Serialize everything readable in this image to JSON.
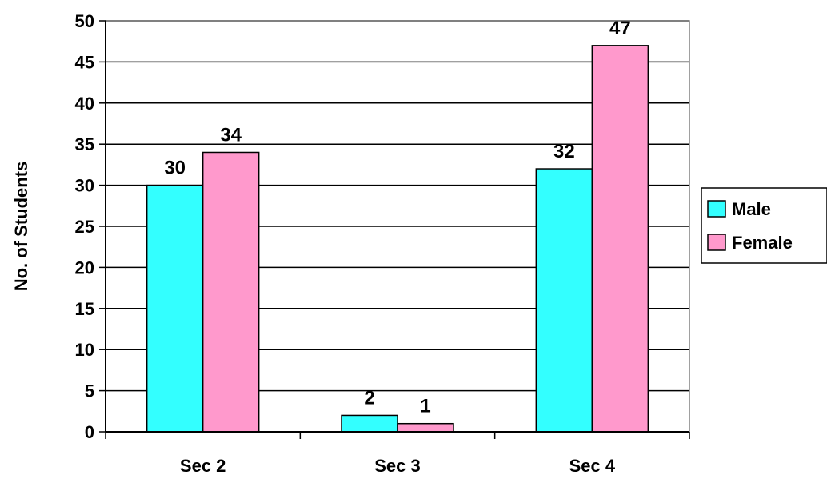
{
  "chart_data": {
    "type": "bar",
    "title": "",
    "xlabel": "",
    "ylabel": "No. of Students",
    "categories": [
      "Sec 2",
      "Sec 3",
      "Sec 4"
    ],
    "series": [
      {
        "name": "Male",
        "values": [
          30,
          2,
          32
        ],
        "color": "#33FFFF"
      },
      {
        "name": "Female",
        "values": [
          34,
          1,
          47
        ],
        "color": "#FF99CC"
      }
    ],
    "ylim": [
      0,
      50
    ],
    "yticks": [
      0,
      5,
      10,
      15,
      20,
      25,
      30,
      35,
      40,
      45,
      50
    ],
    "grid": true,
    "legend": "right",
    "data_labels": true
  }
}
